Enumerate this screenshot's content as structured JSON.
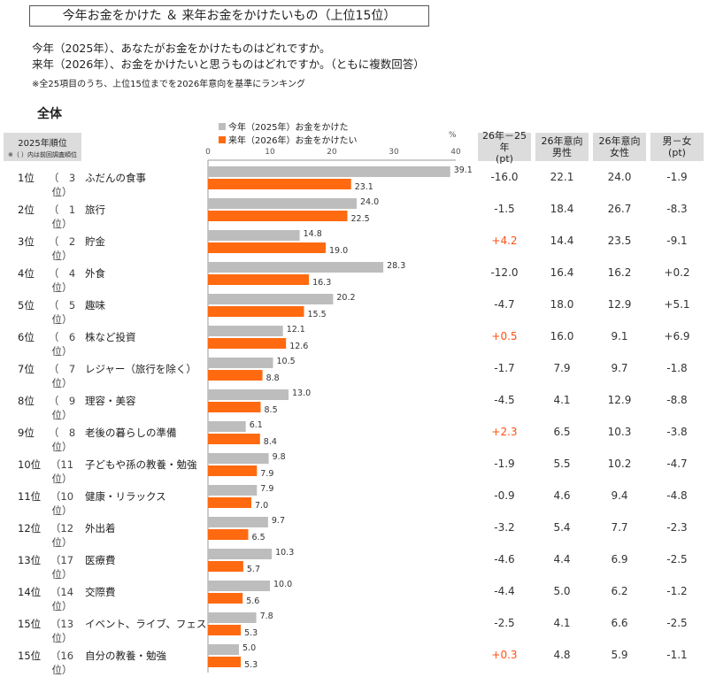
{
  "title": "今年お金をかけた ＆ 来年お金をかけたいもの（上位15位）",
  "question_1": "今年（2025年）、あなたがお金をかけたものはどれですか。",
  "question_2": "来年（2026年）、お金をかけたいと思うものはどれですか。（ともに複数回答）",
  "note": "※全25項目のうち、上位15位までを2026年意向を基準にランキング",
  "section": "全体",
  "rank_header": {
    "line1": "2025年順位",
    "line2": "※（ ）内は前回調査順位"
  },
  "columns": [
    {
      "line1": "26年－25年",
      "line2": "(pt)"
    },
    {
      "line1": "26年意向",
      "line2": "男性"
    },
    {
      "line1": "26年意向",
      "line2": "女性"
    },
    {
      "line1": "男－女",
      "line2": "(pt)"
    }
  ],
  "colors": {
    "series_2025": "#bdbdbd",
    "series_2026": "#ff6a10",
    "highlight": "#ff5010",
    "header_bg": "#dcdcdc"
  },
  "chart_data": {
    "type": "bar",
    "orientation": "horizontal",
    "unit": "%",
    "xlim": [
      0,
      40
    ],
    "ticks": [
      0,
      10,
      20,
      30,
      40
    ],
    "legend_position": "top",
    "categories": [
      "ふだんの食事",
      "旅行",
      "貯金",
      "外食",
      "趣味",
      "株など投資",
      "レジャー（旅行を除く）",
      "理容・美容",
      "老後の暮らしの準備",
      "子どもや孫の教養・勉強",
      "健康・リラックス",
      "外出着",
      "医療費",
      "交際費",
      "イベント、ライブ、フェス",
      "自分の教養・勉強"
    ],
    "series": [
      {
        "name": "今年（2025年）お金をかけた",
        "values": [
          39.1,
          24.0,
          14.8,
          28.3,
          20.2,
          12.1,
          10.5,
          13.0,
          6.1,
          9.8,
          7.9,
          9.7,
          10.3,
          10.0,
          7.8,
          5.0
        ]
      },
      {
        "name": "来年（2026年）お金をかけたい",
        "values": [
          23.1,
          22.5,
          19.0,
          16.3,
          15.5,
          12.6,
          8.8,
          8.5,
          8.4,
          7.9,
          7.0,
          6.5,
          5.7,
          5.6,
          5.3,
          5.3
        ]
      }
    ]
  },
  "rows": [
    {
      "rank": "1位",
      "prev": "（　3位）",
      "label": "ふだんの食事",
      "diff": "-16.0",
      "male": "22.1",
      "female": "24.0",
      "mf": "-1.9"
    },
    {
      "rank": "2位",
      "prev": "（　1位）",
      "label": "旅行",
      "diff": "-1.5",
      "male": "18.4",
      "female": "26.7",
      "mf": "-8.3"
    },
    {
      "rank": "3位",
      "prev": "（　2位）",
      "label": "貯金",
      "diff": "+4.2",
      "male": "14.4",
      "female": "23.5",
      "mf": "-9.1"
    },
    {
      "rank": "4位",
      "prev": "（　4位）",
      "label": "外食",
      "diff": "-12.0",
      "male": "16.4",
      "female": "16.2",
      "mf": "+0.2"
    },
    {
      "rank": "5位",
      "prev": "（　5位）",
      "label": "趣味",
      "diff": "-4.7",
      "male": "18.0",
      "female": "12.9",
      "mf": "+5.1"
    },
    {
      "rank": "6位",
      "prev": "（　6位）",
      "label": "株など投資",
      "diff": "+0.5",
      "male": "16.0",
      "female": "9.1",
      "mf": "+6.9"
    },
    {
      "rank": "7位",
      "prev": "（　7位）",
      "label": "レジャー（旅行を除く）",
      "diff": "-1.7",
      "male": "7.9",
      "female": "9.7",
      "mf": "-1.8"
    },
    {
      "rank": "8位",
      "prev": "（　9位）",
      "label": "理容・美容",
      "diff": "-4.5",
      "male": "4.1",
      "female": "12.9",
      "mf": "-8.8"
    },
    {
      "rank": "9位",
      "prev": "（　8位）",
      "label": "老後の暮らしの準備",
      "diff": "+2.3",
      "male": "6.5",
      "female": "10.3",
      "mf": "-3.8"
    },
    {
      "rank": "10位",
      "prev": "（11位）",
      "label": "子どもや孫の教養・勉強",
      "diff": "-1.9",
      "male": "5.5",
      "female": "10.2",
      "mf": "-4.7"
    },
    {
      "rank": "11位",
      "prev": "（10位）",
      "label": "健康・リラックス",
      "diff": "-0.9",
      "male": "4.6",
      "female": "9.4",
      "mf": "-4.8"
    },
    {
      "rank": "12位",
      "prev": "（12位）",
      "label": "外出着",
      "diff": "-3.2",
      "male": "5.4",
      "female": "7.7",
      "mf": "-2.3"
    },
    {
      "rank": "13位",
      "prev": "（17位）",
      "label": "医療費",
      "diff": "-4.6",
      "male": "4.4",
      "female": "6.9",
      "mf": "-2.5"
    },
    {
      "rank": "14位",
      "prev": "（14位）",
      "label": "交際費",
      "diff": "-4.4",
      "male": "5.0",
      "female": "6.2",
      "mf": "-1.2"
    },
    {
      "rank": "15位",
      "prev": "（13位）",
      "label": "イベント、ライブ、フェス",
      "diff": "-2.5",
      "male": "4.1",
      "female": "6.6",
      "mf": "-2.5"
    },
    {
      "rank": "15位",
      "prev": "（16位）",
      "label": "自分の教養・勉強",
      "diff": "+0.3",
      "male": "4.8",
      "female": "5.9",
      "mf": "-1.1"
    }
  ]
}
